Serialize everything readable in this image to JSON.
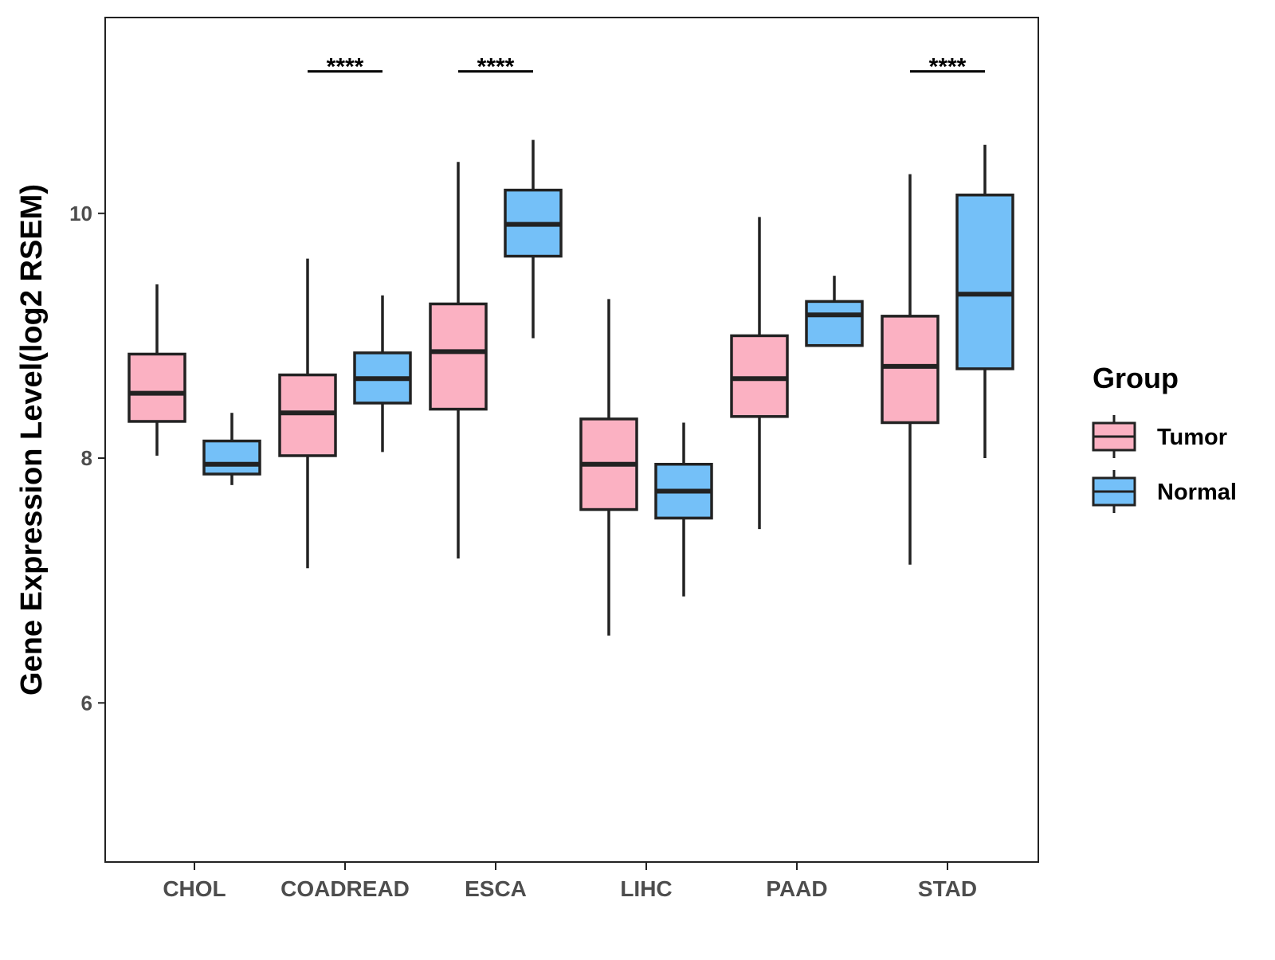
{
  "chart_data": {
    "type": "boxplot",
    "title": "",
    "xlabel": "",
    "ylabel": "Gene Expression Level(log2 RSEM)",
    "ylim": [
      4.7,
      11.6
    ],
    "yticks": [
      6,
      8,
      10
    ],
    "grid": false,
    "categories": [
      "CHOL",
      "COADREAD",
      "ESCA",
      "LIHC",
      "PAAD",
      "STAD"
    ],
    "legend": {
      "title": "Group",
      "position": "right"
    },
    "series": [
      {
        "name": "Tumor",
        "color": "#FBB1C2",
        "boxes": [
          {
            "min": 8.02,
            "q1": 8.3,
            "median": 8.53,
            "q3": 8.85,
            "max": 9.42
          },
          {
            "min": 7.1,
            "q1": 8.02,
            "median": 8.37,
            "q3": 8.68,
            "max": 9.63
          },
          {
            "min": 7.18,
            "q1": 8.4,
            "median": 8.87,
            "q3": 9.26,
            "max": 10.42
          },
          {
            "min": 6.55,
            "q1": 7.58,
            "median": 7.95,
            "q3": 8.32,
            "max": 9.3
          },
          {
            "min": 7.42,
            "q1": 8.34,
            "median": 8.65,
            "q3": 9.0,
            "max": 9.97
          },
          {
            "min": 7.13,
            "q1": 8.29,
            "median": 8.75,
            "q3": 9.16,
            "max": 10.32
          }
        ]
      },
      {
        "name": "Normal",
        "color": "#74C0F8",
        "boxes": [
          {
            "min": 7.78,
            "q1": 7.87,
            "median": 7.95,
            "q3": 8.14,
            "max": 8.37
          },
          {
            "min": 8.05,
            "q1": 8.45,
            "median": 8.65,
            "q3": 8.86,
            "max": 9.33
          },
          {
            "min": 8.98,
            "q1": 9.65,
            "median": 9.91,
            "q3": 10.19,
            "max": 10.6
          },
          {
            "min": 6.87,
            "q1": 7.51,
            "median": 7.73,
            "q3": 7.95,
            "max": 8.29
          },
          {
            "min": 8.92,
            "q1": 8.92,
            "median": 9.17,
            "q3": 9.28,
            "max": 9.49
          },
          {
            "min": 8.0,
            "q1": 8.73,
            "median": 9.34,
            "q3": 10.15,
            "max": 10.56
          }
        ]
      }
    ],
    "annotations": [
      {
        "category": "COADREAD",
        "label": "****",
        "y": 11.16
      },
      {
        "category": "ESCA",
        "label": "****",
        "y": 11.16
      },
      {
        "category": "STAD",
        "label": "****",
        "y": 11.16
      }
    ]
  }
}
